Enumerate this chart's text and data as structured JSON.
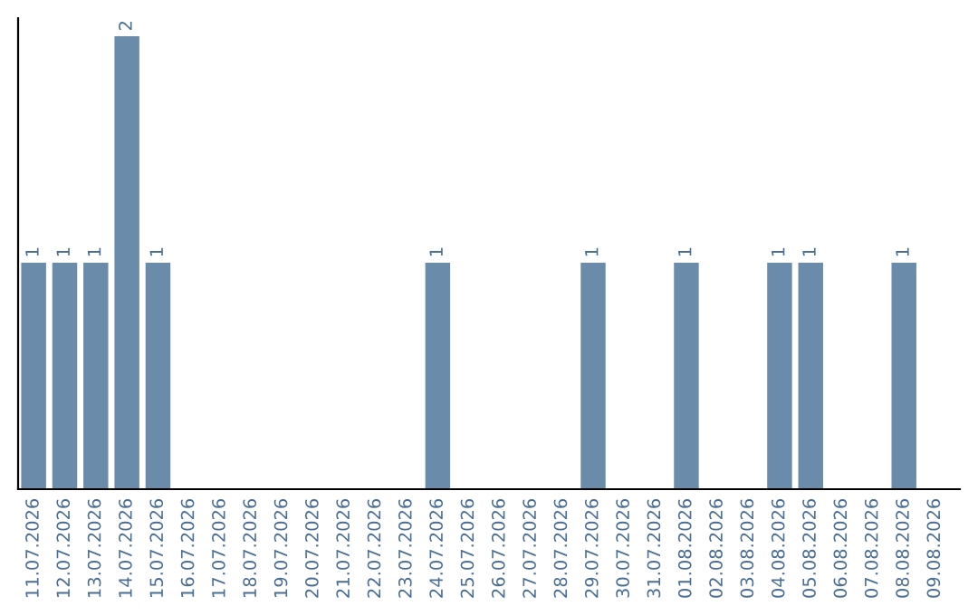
{
  "chart_data": {
    "type": "bar",
    "categories": [
      "11.07.2026",
      "12.07.2026",
      "13.07.2026",
      "14.07.2026",
      "15.07.2026",
      "16.07.2026",
      "17.07.2026",
      "18.07.2026",
      "19.07.2026",
      "20.07.2026",
      "21.07.2026",
      "22.07.2026",
      "23.07.2026",
      "24.07.2026",
      "25.07.2026",
      "26.07.2026",
      "27.07.2026",
      "28.07.2026",
      "29.07.2026",
      "30.07.2026",
      "31.07.2026",
      "01.08.2026",
      "02.08.2026",
      "03.08.2026",
      "04.08.2026",
      "05.08.2026",
      "06.08.2026",
      "07.08.2026",
      "08.08.2026",
      "09.08.2026"
    ],
    "values": [
      1,
      1,
      1,
      2,
      1,
      0,
      0,
      0,
      0,
      0,
      0,
      0,
      0,
      1,
      0,
      0,
      0,
      0,
      1,
      0,
      0,
      1,
      0,
      0,
      1,
      1,
      0,
      0,
      1,
      0
    ],
    "value_labels": [
      "1",
      "1",
      "1",
      "2",
      "1",
      null,
      null,
      null,
      null,
      null,
      null,
      null,
      null,
      "1",
      null,
      null,
      null,
      null,
      "1",
      null,
      null,
      "1",
      null,
      null,
      "1",
      "1",
      null,
      null,
      "1",
      null
    ],
    "color": "#6a8caa",
    "ylim": [
      0,
      2.08
    ],
    "tick_labels": "x",
    "grid": false,
    "legend": false
  }
}
